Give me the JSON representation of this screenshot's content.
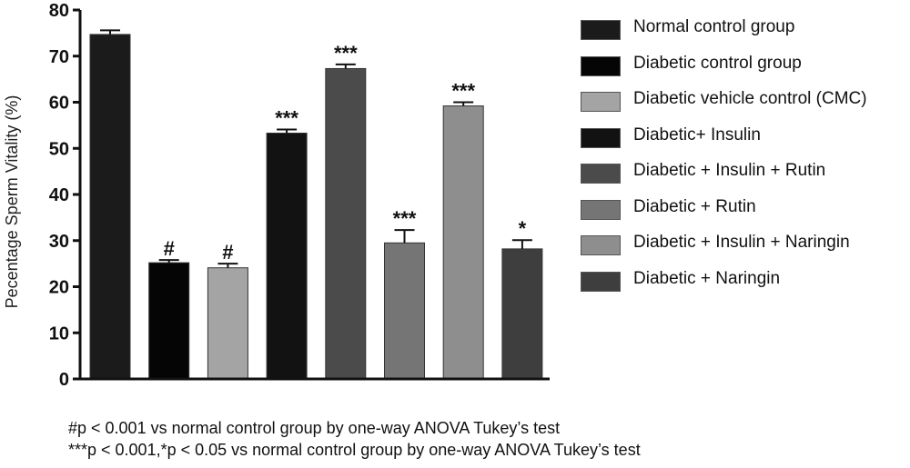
{
  "chart_data": {
    "type": "bar",
    "title": "",
    "xlabel": "",
    "ylabel": "Pecentage Sperm Vitality (%)",
    "ylim": [
      0,
      80
    ],
    "yticks": [
      0,
      10,
      20,
      30,
      40,
      50,
      60,
      70,
      80
    ],
    "grid": false,
    "legend_position": "right",
    "categories": [
      "Normal control group",
      "Diabetic control group",
      "Diabetic vehicle control (CMC)",
      "Diabetic+ Insulin",
      "Diabetic + Insulin + Rutin",
      "Diabetic + Rutin",
      "Diabetic + Insulin + Naringin",
      "Diabetic + Naringin"
    ],
    "values": [
      74.7,
      25.2,
      24.1,
      53.3,
      67.3,
      29.5,
      59.2,
      28.2
    ],
    "errors": [
      0.9,
      0.6,
      0.9,
      0.8,
      0.9,
      2.8,
      0.8,
      1.9
    ],
    "annotations": [
      "",
      "#",
      "#",
      "***",
      "***",
      "***",
      "***",
      "*"
    ],
    "colors": [
      "#1b1b1b",
      "#050505",
      "#a4a4a4",
      "#121212",
      "#4b4b4b",
      "#757575",
      "#8e8e8e",
      "#3e3e3e"
    ]
  },
  "footnotes": [
    "#p < 0.001 vs normal control group by one-way ANOVA Tukey’s test",
    "***p < 0.001,*p < 0.05 vs normal control group by one-way ANOVA Tukey’s test"
  ]
}
